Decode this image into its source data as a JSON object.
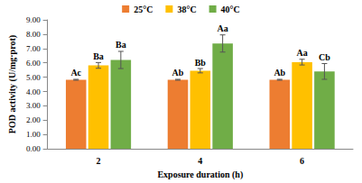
{
  "chart_data": {
    "type": "bar",
    "categories": [
      "2",
      "4",
      "6"
    ],
    "x_label": "Exposure duration (h)",
    "y_label": "POD activity (U/mg·prot)",
    "ylim": [
      0,
      9
    ],
    "yticks": [
      {
        "value": 0,
        "label": "0.00"
      },
      {
        "value": 1,
        "label": "1.00"
      },
      {
        "value": 2,
        "label": "2.00"
      },
      {
        "value": 3,
        "label": "3.00"
      },
      {
        "value": 4,
        "label": "4.00"
      },
      {
        "value": 5,
        "label": "5.00"
      },
      {
        "value": 6,
        "label": "6.00"
      },
      {
        "value": 7,
        "label": "7.00"
      },
      {
        "value": 8,
        "label": "8.00"
      },
      {
        "value": 9,
        "label": "9.00"
      }
    ],
    "grid": false,
    "legend": "top",
    "series": [
      {
        "name": "25°C",
        "color": "#ed7d31",
        "values": [
          4.82,
          4.82,
          4.82
        ],
        "errors": [
          0.03,
          0.03,
          0.03
        ],
        "annotations": [
          "Ac",
          "Ab",
          "Ab"
        ]
      },
      {
        "name": "38°C",
        "color": "#ffc000",
        "values": [
          5.82,
          5.45,
          6.05
        ],
        "errors": [
          0.2,
          0.15,
          0.2
        ],
        "annotations": [
          "Ba",
          "Bb",
          "Aa"
        ]
      },
      {
        "name": "40°C",
        "color": "#70ad47",
        "values": [
          6.2,
          7.35,
          5.4
        ],
        "errors": [
          0.6,
          0.6,
          0.55
        ],
        "annotations": [
          "Ba",
          "Aa",
          "Cb"
        ]
      }
    ]
  }
}
